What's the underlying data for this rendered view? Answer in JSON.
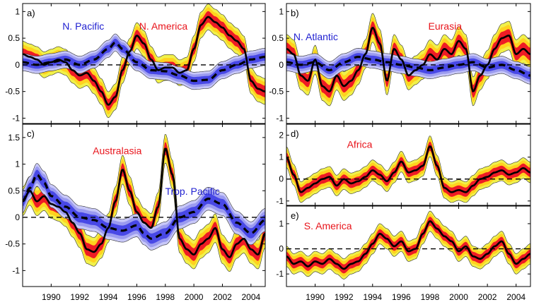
{
  "chart_data": [
    {
      "id": "a",
      "type": "line",
      "panel_label": "a)",
      "xlim": [
        1988,
        2005
      ],
      "ylim": [
        -1.1,
        1.15
      ],
      "yticks": [
        "-1",
        "-0.5",
        "0",
        "0.5",
        "1"
      ],
      "xticks": [
        "1990",
        "1992",
        "1994",
        "1996",
        "1998",
        "2000",
        "2002",
        "2004"
      ],
      "show_xticklabels": false,
      "series": [
        {
          "name": "N. America",
          "color": "#e8141b",
          "style": "solid",
          "x": [
            1988,
            1988.5,
            1989,
            1989.5,
            1990,
            1990.5,
            1991,
            1991.5,
            1992,
            1992.5,
            1993,
            1993.5,
            1994,
            1994.5,
            1995,
            1995.5,
            1996,
            1996.5,
            1997,
            1997.5,
            1998,
            1998.5,
            1999,
            1999.5,
            2000,
            2000.5,
            2001,
            2001.5,
            2002,
            2002.5,
            2003,
            2003.5,
            2004,
            2004.5,
            2005
          ],
          "y": [
            0.2,
            0.15,
            0.1,
            0.0,
            0.05,
            0.1,
            0.05,
            -0.1,
            -0.2,
            -0.15,
            -0.3,
            -0.5,
            -0.75,
            -0.6,
            -0.1,
            0.25,
            0.55,
            0.4,
            0.1,
            -0.1,
            -0.05,
            -0.05,
            -0.15,
            -0.1,
            0.3,
            0.75,
            0.9,
            0.8,
            0.7,
            0.55,
            0.45,
            0.3,
            -0.3,
            -0.45,
            -0.5
          ],
          "band": 0.18
        },
        {
          "name": "N. Pacific",
          "color": "#1f1fd0",
          "style": "dashed",
          "x": [
            1988,
            1989,
            1990,
            1991,
            1992,
            1993,
            1994,
            1994.5,
            1995,
            1996,
            1997,
            1998,
            1999,
            2000,
            2001,
            2002,
            2003,
            2004,
            2005
          ],
          "y": [
            0.05,
            0.0,
            0.05,
            0.1,
            0.0,
            0.1,
            0.3,
            0.42,
            0.3,
            0.05,
            -0.1,
            -0.12,
            -0.2,
            -0.3,
            -0.28,
            -0.1,
            0.0,
            0.1,
            0.15
          ],
          "band": 0.12
        }
      ],
      "annotations": [
        {
          "text": "N. Pacific",
          "color": "blue",
          "at": "upper-left"
        },
        {
          "text": "N. America",
          "color": "red",
          "at": "upper-center"
        }
      ]
    },
    {
      "id": "b",
      "type": "line",
      "panel_label": "b)",
      "xlim": [
        1988,
        2005
      ],
      "ylim": [
        -1.1,
        1.15
      ],
      "yticks": [
        "-1",
        "-0.5",
        "0",
        "0.5",
        "1"
      ],
      "xticks": [
        "1990",
        "1992",
        "1994",
        "1996",
        "1998",
        "2000",
        "2002",
        "2004"
      ],
      "show_xticklabels": false,
      "series": [
        {
          "name": "Eurasia",
          "color": "#e8141b",
          "style": "solid",
          "x": [
            1988,
            1988.5,
            1989,
            1989.5,
            1990,
            1990.5,
            1991,
            1991.5,
            1992,
            1992.5,
            1993,
            1993.5,
            1994,
            1994.5,
            1995,
            1995.5,
            1996,
            1996.5,
            1997,
            1997.5,
            1998,
            1998.5,
            1999,
            1999.5,
            2000,
            2000.5,
            2001,
            2001.5,
            2002,
            2002.5,
            2003,
            2003.5,
            2004,
            2004.5,
            2005
          ],
          "y": [
            0.3,
            0.2,
            -0.2,
            -0.3,
            0.1,
            -0.4,
            -0.5,
            -0.2,
            -0.4,
            -0.3,
            -0.1,
            0.2,
            0.7,
            0.4,
            -0.3,
            0.3,
            0.1,
            -0.2,
            -0.1,
            0.0,
            0.2,
            0.1,
            0.3,
            0.2,
            0.45,
            0.3,
            -0.5,
            -0.2,
            0.0,
            0.3,
            0.5,
            0.55,
            0.2,
            0.3,
            0.2
          ],
          "band": 0.2
        },
        {
          "name": "N. Atlantic",
          "color": "#1f1fd0",
          "style": "dashed",
          "x": [
            1988,
            1989,
            1990,
            1991,
            1992,
            1993,
            1994,
            1995,
            1996,
            1997,
            1998,
            1999,
            2000,
            2001,
            2002,
            2003,
            2004,
            2005
          ],
          "y": [
            0.05,
            0.0,
            0.05,
            -0.1,
            0.05,
            0.15,
            0.1,
            0.05,
            0.0,
            -0.05,
            -0.1,
            -0.05,
            0.0,
            0.05,
            -0.05,
            0.0,
            -0.1,
            -0.2
          ],
          "band": 0.12
        }
      ],
      "annotations": [
        {
          "text": "N. Atlantic",
          "color": "blue",
          "at": "upper-left"
        },
        {
          "text": "Eurasia",
          "color": "red",
          "at": "upper-right"
        }
      ]
    },
    {
      "id": "c",
      "type": "line",
      "panel_label": "c)",
      "xlim": [
        1988,
        2005
      ],
      "ylim": [
        -1.3,
        1.75
      ],
      "yticks": [
        "-1",
        "-0.5",
        "0",
        "0.5",
        "1",
        "1.5"
      ],
      "xticks": [
        "1990",
        "1992",
        "1994",
        "1996",
        "1998",
        "2000",
        "2002",
        "2004"
      ],
      "show_xticklabels": true,
      "series": [
        {
          "name": "Australasia",
          "color": "#e8141b",
          "style": "solid",
          "x": [
            1988,
            1988.5,
            1989,
            1989.5,
            1990,
            1990.5,
            1991,
            1991.5,
            1992,
            1992.5,
            1993,
            1993.5,
            1994,
            1994.5,
            1995,
            1995.5,
            1996,
            1996.5,
            1997,
            1997.5,
            1998,
            1998.5,
            1999,
            1999.5,
            2000,
            2000.5,
            2001,
            2001.5,
            2002,
            2002.5,
            2003,
            2003.5,
            2004,
            2004.5,
            2005
          ],
          "y": [
            0.3,
            0.5,
            0.3,
            0.4,
            0.25,
            0.2,
            0.1,
            -0.1,
            -0.3,
            -0.6,
            -0.65,
            -0.5,
            -0.2,
            0.3,
            0.9,
            0.5,
            0.1,
            -0.1,
            -0.2,
            0.2,
            1.3,
            0.8,
            -0.4,
            -0.6,
            -0.7,
            -0.5,
            -0.4,
            -0.2,
            -0.6,
            -0.75,
            -0.5,
            -0.4,
            -0.6,
            -0.7,
            -0.3
          ],
          "band": 0.2
        },
        {
          "name": "Trop. Pacific",
          "color": "#1f1fd0",
          "style": "dashed",
          "x": [
            1988,
            1988.5,
            1989,
            1989.5,
            1990,
            1991,
            1992,
            1993,
            1994,
            1995,
            1996,
            1996.5,
            1997,
            1998,
            1999,
            2000,
            2001,
            2002,
            2003,
            2004,
            2005
          ],
          "y": [
            0.3,
            0.55,
            0.8,
            0.65,
            0.4,
            0.2,
            0.0,
            -0.05,
            -0.2,
            -0.25,
            -0.15,
            -0.3,
            -0.4,
            -0.3,
            0.0,
            0.1,
            0.35,
            0.25,
            -0.1,
            -0.3,
            -0.05
          ],
          "band": 0.16
        }
      ],
      "annotations": [
        {
          "text": "Australasia",
          "color": "red",
          "at": "upper-center"
        },
        {
          "text": "Trop. Pacific",
          "color": "blue",
          "at": "right"
        }
      ]
    },
    {
      "id": "d",
      "type": "line",
      "panel_label": "d)",
      "xlim": [
        1988,
        2005
      ],
      "ylim": [
        -1.2,
        2.5
      ],
      "yticks": [
        "-1",
        "0",
        "1",
        "2"
      ],
      "xticks": [
        "1990",
        "1992",
        "1994",
        "1996",
        "1998",
        "2000",
        "2002",
        "2004"
      ],
      "show_xticklabels": false,
      "series": [
        {
          "name": "Africa",
          "color": "#e8141b",
          "style": "solid",
          "x": [
            1988,
            1988.5,
            1989,
            1989.5,
            1990,
            1990.5,
            1991,
            1991.5,
            1992,
            1992.5,
            1993,
            1993.5,
            1994,
            1994.5,
            1995,
            1995.5,
            1996,
            1996.5,
            1997,
            1997.5,
            1998,
            1998.5,
            1999,
            1999.5,
            2000,
            2000.5,
            2001,
            2001.5,
            2002,
            2002.5,
            2003,
            2003.5,
            2004,
            2004.5,
            2005
          ],
          "y": [
            1.0,
            0.2,
            -0.6,
            -0.4,
            -0.2,
            0.0,
            0.1,
            -0.3,
            0.0,
            -0.2,
            -0.1,
            0.1,
            0.4,
            0.2,
            -0.1,
            0.3,
            0.8,
            0.3,
            0.4,
            0.6,
            1.5,
            0.6,
            -0.4,
            -0.6,
            -0.5,
            -0.6,
            -0.3,
            0.0,
            0.1,
            0.3,
            0.4,
            0.2,
            0.3,
            0.5,
            0.3
          ],
          "band": 0.35
        },
        {
          "name": "zero",
          "color": "#000000",
          "style": "dashed",
          "x": [
            1988,
            2005
          ],
          "y": [
            0,
            0
          ],
          "band": 0
        }
      ],
      "annotations": [
        {
          "text": "Africa",
          "color": "red",
          "at": "upper-center"
        }
      ]
    },
    {
      "id": "e",
      "type": "line",
      "panel_label": "e)",
      "xlim": [
        1988,
        2005
      ],
      "ylim": [
        -1.5,
        1.7
      ],
      "yticks": [
        "-1",
        "0",
        "1"
      ],
      "xticks": [
        "1990",
        "1992",
        "1994",
        "1996",
        "1998",
        "2000",
        "2002",
        "2004"
      ],
      "show_xticklabels": true,
      "series": [
        {
          "name": "S. America",
          "color": "#e8141b",
          "style": "solid",
          "x": [
            1988,
            1988.5,
            1989,
            1989.5,
            1990,
            1990.5,
            1991,
            1991.5,
            1992,
            1992.5,
            1993,
            1993.5,
            1994,
            1994.5,
            1995,
            1995.5,
            1996,
            1996.5,
            1997,
            1997.5,
            1998,
            1998.5,
            1999,
            1999.5,
            2000,
            2000.5,
            2001,
            2001.5,
            2002,
            2002.5,
            2003,
            2003.5,
            2004,
            2004.5,
            2005
          ],
          "y": [
            -0.3,
            -0.6,
            -0.5,
            -0.7,
            -0.5,
            -0.6,
            -0.4,
            -0.6,
            -0.8,
            -0.6,
            -0.5,
            -0.2,
            0.2,
            0.6,
            0.4,
            0.1,
            0.3,
            -0.1,
            0.0,
            0.6,
            1.1,
            0.8,
            0.5,
            0.3,
            -0.1,
            0.1,
            -0.3,
            -0.4,
            -0.2,
            0.1,
            0.3,
            -0.2,
            -0.6,
            -0.4,
            -0.2
          ],
          "band": 0.3
        },
        {
          "name": "zero",
          "color": "#000000",
          "style": "dashed",
          "x": [
            1988,
            2005
          ],
          "y": [
            0,
            0
          ],
          "band": 0
        }
      ],
      "annotations": [
        {
          "text": "S. America",
          "color": "red",
          "at": "upper-left"
        }
      ]
    }
  ]
}
